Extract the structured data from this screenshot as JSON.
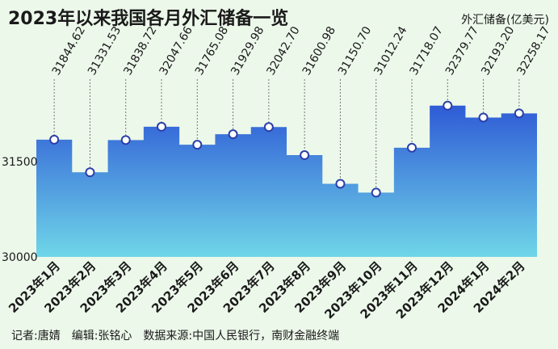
{
  "title": "2023年以来我国各月外汇储备一览",
  "unit_label": "外汇储备(亿美元)",
  "credits": "记者:唐婧　编辑:张铭心　数据来源:中国人民银行，南财金融终端",
  "colors": {
    "background": "#ecf8ea",
    "area_top": "#2f5bd6",
    "area_bottom": "#6fd6e8",
    "marker_fill": "#ffffff",
    "marker_stroke": "#2a3fa8",
    "leader": "#777777"
  },
  "chart_data": {
    "type": "area",
    "title": "2023年以来我国各月外汇储备一览",
    "ylabel": "外汇储备(亿美元)",
    "categories": [
      "2023年1月",
      "2023年2月",
      "2023年3月",
      "2023年4月",
      "2023年5月",
      "2023年6月",
      "2023年7月",
      "2023年8月",
      "2023年9月",
      "2023年10月",
      "2023年11月",
      "2023年12月",
      "2024年1月",
      "2024年2月"
    ],
    "values": [
      31844.62,
      31331.53,
      31838.72,
      32047.66,
      31765.08,
      31929.98,
      32042.7,
      31600.98,
      31150.7,
      31012.24,
      31718.07,
      32379.77,
      32193.2,
      32258.17
    ],
    "value_labels": [
      "31844.62",
      "31331.53",
      "31838.72",
      "32047.66",
      "31765.08",
      "31929.98",
      "32042.70",
      "31600.98",
      "31150.70",
      "31012.24",
      "31718.07",
      "32379.77",
      "32193.20",
      "32258.17"
    ],
    "yticks": [
      30000,
      31500
    ],
    "ylim": [
      30000,
      33100
    ],
    "grid": false,
    "legend": "none"
  }
}
